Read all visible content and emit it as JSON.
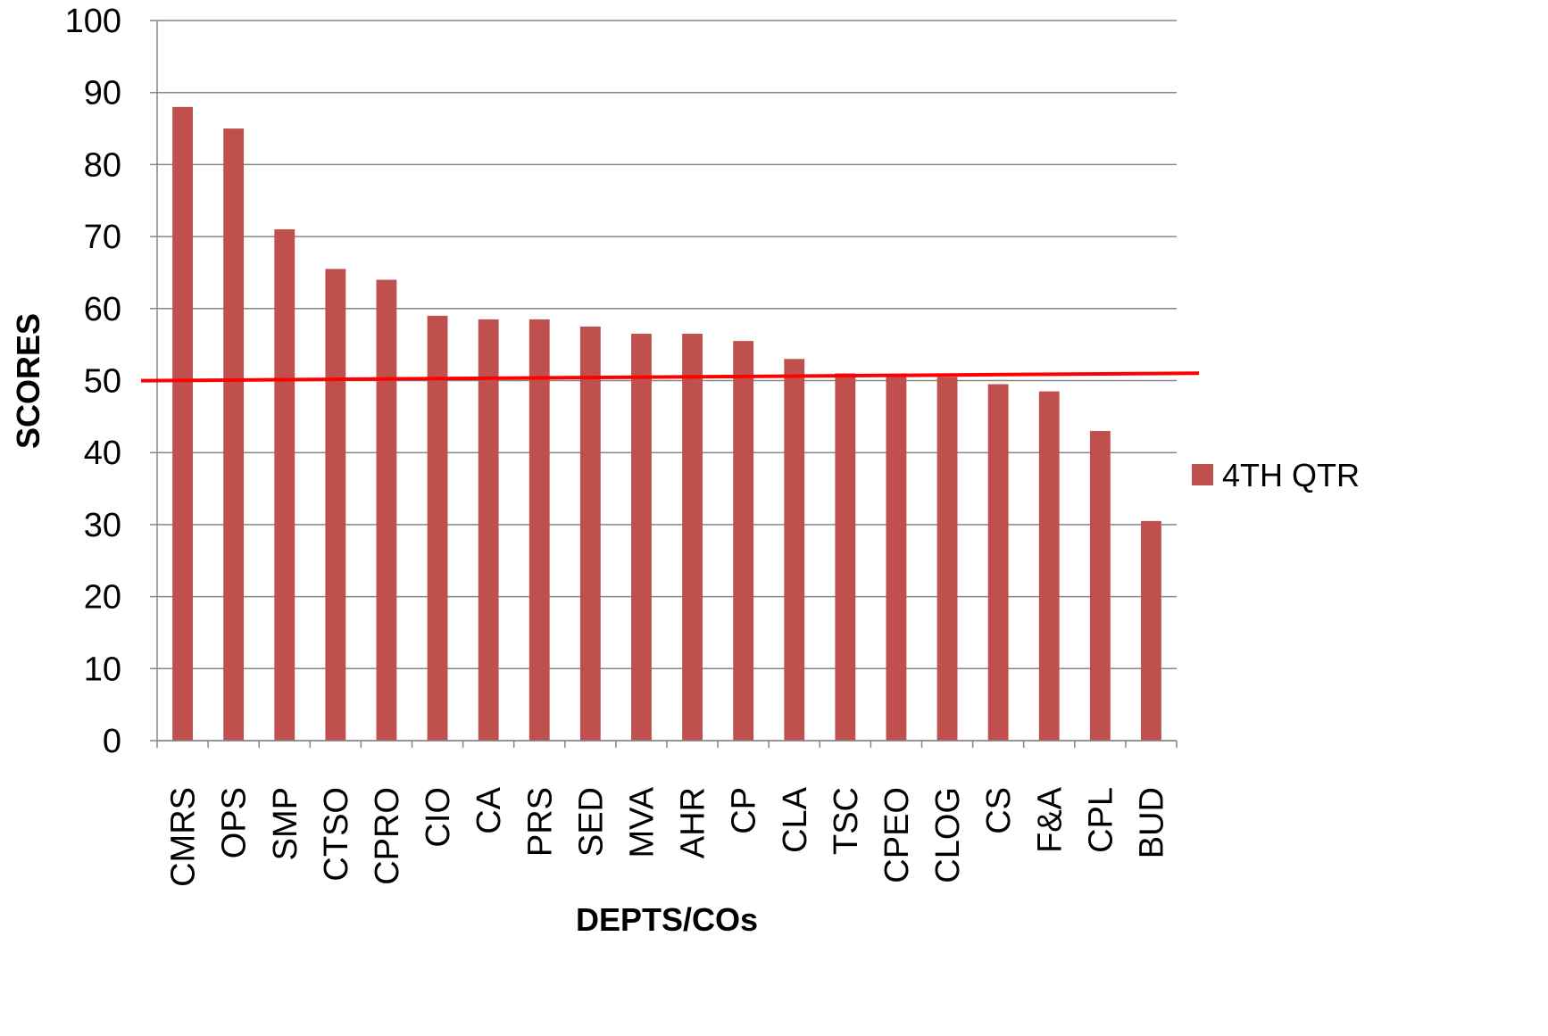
{
  "chart_data": {
    "type": "bar",
    "title": "",
    "xlabel": "DEPTS/COs",
    "ylabel": "SCORES",
    "ylim": [
      0,
      100
    ],
    "yticks": [
      0,
      10,
      20,
      30,
      40,
      50,
      60,
      70,
      80,
      90,
      100
    ],
    "grid": true,
    "legend_position": "right",
    "categories": [
      "CMRS",
      "OPS",
      "SMP",
      "CTSO",
      "CPRO",
      "CIO",
      "CA",
      "PRS",
      "SED",
      "MVA",
      "AHR",
      "CP",
      "CLA",
      "TSC",
      "CPEO",
      "CLOG",
      "CS",
      "F&A",
      "CPL",
      "BUD"
    ],
    "series": [
      {
        "name": "4TH QTR",
        "color": "#c0504d",
        "values": [
          88,
          85,
          71,
          65.5,
          64,
          59,
          58.5,
          58.5,
          57.5,
          56.5,
          56.5,
          55.5,
          53,
          51,
          50.5,
          50.5,
          49.5,
          48.5,
          43,
          30.5
        ]
      }
    ],
    "reference_line": {
      "color": "#ff0000",
      "start_value": 50,
      "end_value": 51
    }
  }
}
